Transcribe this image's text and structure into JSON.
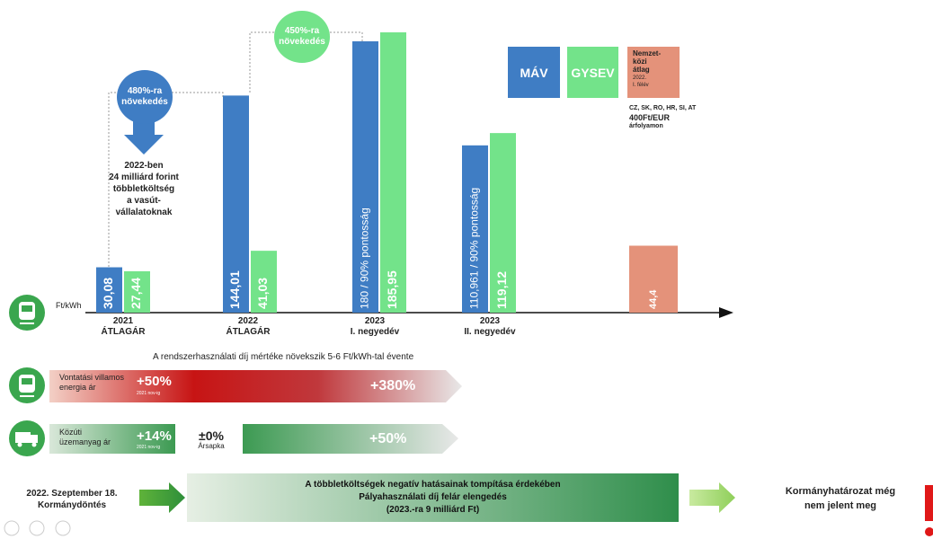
{
  "chart_data": {
    "type": "bar",
    "unit": "Ft/kWh",
    "categories": [
      {
        "line1": "2021",
        "line2": "ÁTLAGÁR"
      },
      {
        "line1": "2022",
        "line2": "ÁTLAGÁR"
      },
      {
        "line1": "2023",
        "line2": "I. negyedév"
      },
      {
        "line1": "2023",
        "line2": "II. negyedév"
      },
      {
        "line1": "",
        "line2": ""
      }
    ],
    "series": [
      {
        "name": "MÁV",
        "color": "#3f7dc4",
        "values": [
          30.08,
          144.01,
          180,
          110.961,
          null
        ],
        "labels": [
          "30,08",
          "144,01",
          "180 / 90% pontosság",
          "110,961 / 90% pontosság",
          ""
        ]
      },
      {
        "name": "GYSEV",
        "color": "#73e38a",
        "values": [
          27.44,
          41.03,
          185.95,
          119.12,
          null
        ],
        "labels": [
          "27,44",
          "41,03",
          "185,95",
          "119,12",
          ""
        ]
      },
      {
        "name": "Nemzetközi átlag",
        "color": "#e4927a",
        "values": [
          null,
          null,
          null,
          null,
          44.4
        ],
        "labels": [
          "",
          "",
          "",
          "",
          "44,4"
        ]
      }
    ]
  },
  "legend": {
    "mav": "MÁV",
    "gysev": "GYSEV",
    "intl_l1": "Nemzet-",
    "intl_l2": "közi",
    "intl_l3": "átlag",
    "intl_l4": "2022.",
    "intl_l5": "I. félév",
    "note1": "CZ, SK, RO, HR, SI, AT",
    "note2": "400Ft/EUR",
    "note3": "árfolyamon"
  },
  "annotations": {
    "bubble1_l1": "480%-ra",
    "bubble1_l2": "növekedés",
    "bubble2_l1": "450%-ra",
    "bubble2_l2": "növekedés",
    "note_l1": "2022-ben",
    "note_l2": "24 milliárd forint",
    "note_l3": "többletköltség",
    "note_l4": "a vasút-",
    "note_l5": "vállalatoknak",
    "fee_note": "A rendszerhasználati díj mértéke növekszik 5-6 Ft/kWh-tal évente"
  },
  "rows": {
    "energy_l1": "Vontatási villamos",
    "energy_l2": "energia ár",
    "energy_first": "+50%",
    "energy_first_sub": "2021 nov-ig",
    "energy_second": "+380%",
    "fuel_l1": "Közúti",
    "fuel_l2": "üzemanyag ár",
    "fuel_first": "+14%",
    "fuel_first_sub": "2021 nov-ig",
    "fuel_mid": "±0%",
    "fuel_mid_sub": "Ársapka",
    "fuel_second": "+50%"
  },
  "bottom": {
    "left_l1": "2022. Szeptember 18.",
    "left_l2": "Kormánydöntés",
    "box_l1": "A többletköltségek negatív hatásainak tompítása érdekében",
    "box_l2": "Pályahasználati díj felár elengedés",
    "box_l3": "(2023.-ra 9 milliárd Ft)",
    "right_l1": "Kormányhatározat még",
    "right_l2": "nem jelent meg",
    "exclaim": "!"
  }
}
